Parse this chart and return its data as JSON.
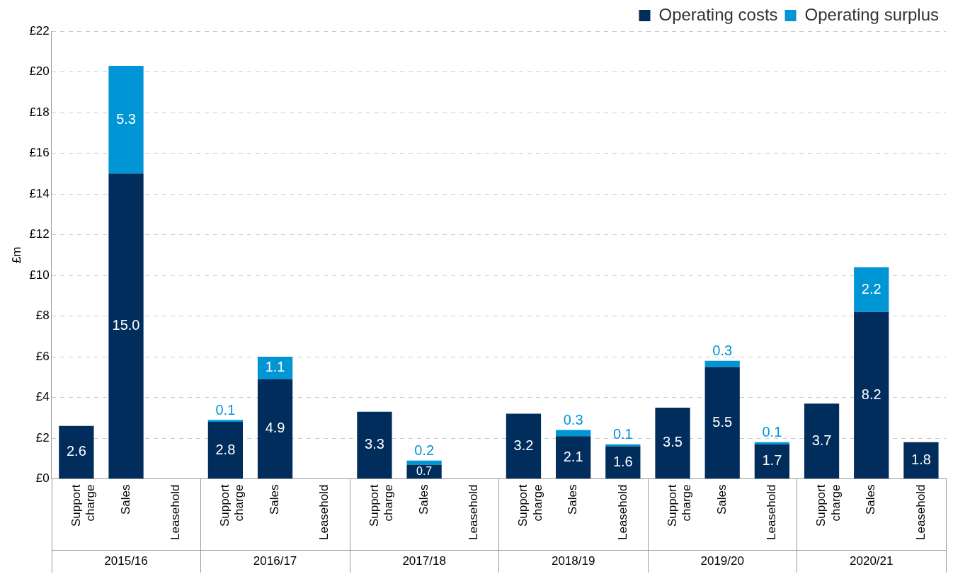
{
  "chart_data": {
    "type": "bar",
    "stacked": true,
    "ylabel": "£m",
    "categories": [
      "Support charge",
      "Sales",
      "Leasehold",
      "Support charge",
      "Sales",
      "Leasehold",
      "Support charge",
      "Sales",
      "Leasehold",
      "Support charge",
      "Sales",
      "Leasehold",
      "Support charge",
      "Sales",
      "Leasehold",
      "Support charge",
      "Sales",
      "Leasehold"
    ],
    "series": [
      {
        "name": "Operating costs",
        "color": "#002d5c",
        "values": [
          2.6,
          15.0,
          null,
          2.8,
          4.9,
          null,
          3.3,
          0.7,
          null,
          3.2,
          2.1,
          1.6,
          3.5,
          5.5,
          1.7,
          3.7,
          8.2,
          1.8
        ],
        "value_labels": [
          "2.6",
          "15.0",
          null,
          "2.8",
          "4.9",
          null,
          "3.3",
          "0.7",
          null,
          "3.2",
          "2.1",
          "1.6",
          "3.5",
          "5.5",
          "1.7",
          "3.7",
          "8.2",
          "1.8"
        ]
      },
      {
        "name": "Operating surplus",
        "color": "#0095d5",
        "values": [
          null,
          5.3,
          null,
          0.1,
          1.1,
          null,
          null,
          0.2,
          null,
          null,
          0.3,
          0.1,
          null,
          0.3,
          0.1,
          null,
          2.2,
          null
        ],
        "value_labels": [
          null,
          "5.3",
          null,
          "0.1",
          "1.1",
          null,
          null,
          "0.2",
          null,
          null,
          "0.3",
          "0.1",
          null,
          "0.3",
          "0.1",
          null,
          "2.2",
          null
        ]
      }
    ],
    "ylim": [
      0,
      22
    ],
    "yticks": [
      {
        "value": 0,
        "label": "£0"
      },
      {
        "value": 2,
        "label": "£2"
      },
      {
        "value": 4,
        "label": "£4"
      },
      {
        "value": 6,
        "label": "£6"
      },
      {
        "value": 8,
        "label": "£8"
      },
      {
        "value": 10,
        "label": "£10"
      },
      {
        "value": 12,
        "label": "£12"
      },
      {
        "value": 14,
        "label": "£14"
      },
      {
        "value": 16,
        "label": "£16"
      },
      {
        "value": 18,
        "label": "£18"
      },
      {
        "value": 20,
        "label": "£20"
      },
      {
        "value": 22,
        "label": "£22"
      }
    ],
    "grid": "y",
    "legend": "top right",
    "annotations": [
      "2015/16",
      "2016/17",
      "2017/18",
      "2018/19",
      "2019/20",
      "2020/21"
    ]
  }
}
